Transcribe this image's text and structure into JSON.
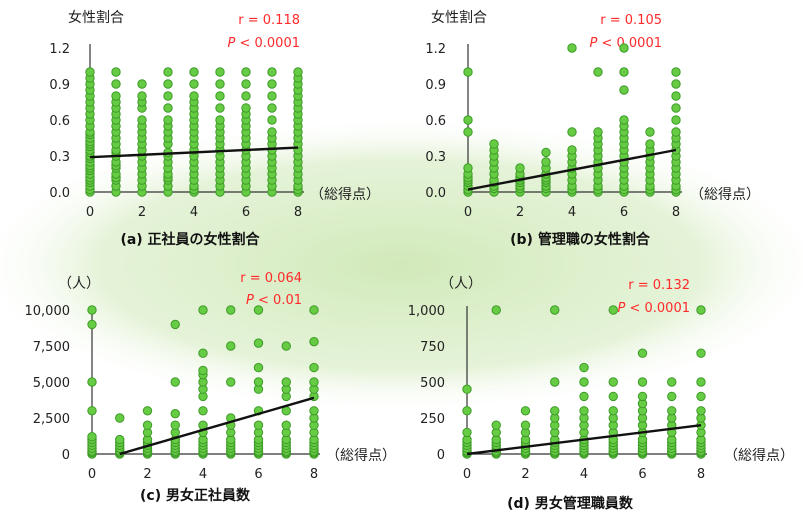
{
  "colors": {
    "point_fill": "#66cc44",
    "point_stroke": "#3e9a28",
    "trend_line": "#111111",
    "stat_text": "#ff2a2a",
    "background_band": "#d9efc6"
  },
  "chart_data": [
    {
      "type": "scatter",
      "title": "(a) 正社員の女性割合",
      "ylabel": "女性割合",
      "xlabel": "（総得点）",
      "r_text": "r = 0.118",
      "p_symbol": "P",
      "p_rest": " < 0.0001",
      "ylim": [
        0,
        1.2
      ],
      "xlim": [
        0,
        8
      ],
      "yticks": [
        "0.0",
        "0.3",
        "0.6",
        "0.9",
        "1.2"
      ],
      "yticks_values": [
        0,
        0.3,
        0.6,
        0.9,
        1.2
      ],
      "xticks": [
        "0",
        "2",
        "4",
        "6",
        "8"
      ],
      "xticks_values": [
        0,
        2,
        4,
        6,
        8
      ],
      "x_values": [
        0,
        1,
        2,
        3,
        4,
        5,
        6,
        7,
        8
      ],
      "y_per_x": [
        [
          0,
          0.02,
          0.05,
          0.08,
          0.1,
          0.12,
          0.15,
          0.18,
          0.2,
          0.22,
          0.25,
          0.28,
          0.3,
          0.33,
          0.35,
          0.38,
          0.4,
          0.42,
          0.45,
          0.48,
          0.5,
          0.55,
          0.6,
          0.65,
          0.7,
          0.75,
          0.8,
          0.85,
          0.9,
          0.95,
          1.0
        ],
        [
          0,
          0.05,
          0.1,
          0.12,
          0.15,
          0.2,
          0.22,
          0.25,
          0.3,
          0.33,
          0.35,
          0.4,
          0.45,
          0.5,
          0.55,
          0.6,
          0.65,
          0.7,
          0.75,
          0.8,
          0.9,
          1.0
        ],
        [
          0,
          0.05,
          0.1,
          0.15,
          0.2,
          0.25,
          0.3,
          0.35,
          0.4,
          0.45,
          0.5,
          0.55,
          0.6,
          0.7,
          0.75,
          0.8,
          0.9
        ],
        [
          0,
          0.05,
          0.1,
          0.12,
          0.15,
          0.2,
          0.25,
          0.3,
          0.33,
          0.4,
          0.45,
          0.5,
          0.55,
          0.6,
          0.7,
          0.8,
          0.9,
          1.0
        ],
        [
          0,
          0.02,
          0.05,
          0.1,
          0.15,
          0.2,
          0.25,
          0.3,
          0.35,
          0.4,
          0.45,
          0.5,
          0.55,
          0.6,
          0.65,
          0.7,
          0.75,
          0.8,
          0.9,
          1.0
        ],
        [
          0,
          0.05,
          0.1,
          0.15,
          0.2,
          0.25,
          0.3,
          0.35,
          0.4,
          0.45,
          0.5,
          0.55,
          0.6,
          0.7,
          0.8,
          0.9,
          1.0
        ],
        [
          0,
          0.05,
          0.1,
          0.15,
          0.2,
          0.25,
          0.3,
          0.35,
          0.4,
          0.45,
          0.5,
          0.55,
          0.6,
          0.65,
          0.7,
          0.8,
          0.9,
          1.0
        ],
        [
          0,
          0.05,
          0.1,
          0.15,
          0.2,
          0.25,
          0.3,
          0.35,
          0.4,
          0.45,
          0.5,
          0.6,
          0.7,
          0.8,
          0.9,
          1.0
        ],
        [
          0,
          0.02,
          0.05,
          0.1,
          0.15,
          0.2,
          0.25,
          0.3,
          0.35,
          0.4,
          0.45,
          0.5,
          0.55,
          0.6,
          0.65,
          0.7,
          0.75,
          0.8,
          0.85,
          0.9,
          0.95,
          1.0
        ]
      ],
      "trend": {
        "x": [
          0,
          8
        ],
        "y": [
          0.29,
          0.37
        ]
      }
    },
    {
      "type": "scatter",
      "title": "(b) 管理職の女性割合",
      "ylabel": "女性割合",
      "xlabel": "（総得点）",
      "r_text": "r = 0.105",
      "p_symbol": "P",
      "p_rest": " < 0.0001",
      "ylim": [
        0,
        1.2
      ],
      "xlim": [
        0,
        8
      ],
      "yticks": [
        "0.0",
        "0.3",
        "0.6",
        "0.9",
        "1.2"
      ],
      "yticks_values": [
        0,
        0.3,
        0.6,
        0.9,
        1.2
      ],
      "xticks": [
        "0",
        "2",
        "4",
        "6",
        "8"
      ],
      "xticks_values": [
        0,
        2,
        4,
        6,
        8
      ],
      "x_values": [
        0,
        1,
        2,
        3,
        4,
        5,
        6,
        7,
        8
      ],
      "y_per_x": [
        [
          0,
          0.02,
          0.05,
          0.08,
          0.1,
          0.12,
          0.15,
          0.2,
          0.5,
          0.6,
          1.0
        ],
        [
          0,
          0.03,
          0.05,
          0.08,
          0.1,
          0.15,
          0.2,
          0.25,
          0.3,
          0.35,
          0.4
        ],
        [
          0,
          0.03,
          0.05,
          0.08,
          0.1,
          0.12,
          0.15,
          0.2
        ],
        [
          0,
          0.03,
          0.05,
          0.08,
          0.1,
          0.12,
          0.15,
          0.2,
          0.25,
          0.33
        ],
        [
          0,
          0.02,
          0.05,
          0.1,
          0.15,
          0.2,
          0.25,
          0.3,
          0.35,
          0.5,
          1.2
        ],
        [
          0,
          0.02,
          0.05,
          0.1,
          0.15,
          0.2,
          0.25,
          0.3,
          0.35,
          0.4,
          0.45,
          0.5,
          1.0
        ],
        [
          0,
          0.02,
          0.05,
          0.1,
          0.15,
          0.2,
          0.25,
          0.3,
          0.35,
          0.4,
          0.45,
          0.5,
          0.55,
          0.6,
          0.85,
          1.0,
          1.2
        ],
        [
          0,
          0.02,
          0.05,
          0.1,
          0.15,
          0.2,
          0.25,
          0.3,
          0.35,
          0.4,
          0.5
        ],
        [
          0,
          0.02,
          0.05,
          0.1,
          0.15,
          0.2,
          0.25,
          0.3,
          0.35,
          0.4,
          0.45,
          0.5,
          0.6,
          0.7,
          0.8,
          0.9,
          1.0
        ]
      ],
      "trend": {
        "x": [
          0,
          8
        ],
        "y": [
          0.02,
          0.35
        ]
      }
    },
    {
      "type": "scatter",
      "title": "(c) 男女正社員数",
      "ylabel": "（人）",
      "xlabel": "（総得点）",
      "r_text": "r = 0.064",
      "p_symbol": "P",
      "p_rest": " < 0.01",
      "ylim": [
        0,
        10000
      ],
      "xlim": [
        0,
        8
      ],
      "yticks": [
        "0",
        "2,500",
        "5,000",
        "7,500",
        "10,000"
      ],
      "yticks_values": [
        0,
        2500,
        5000,
        7500,
        10000
      ],
      "xticks": [
        "0",
        "2",
        "4",
        "6",
        "8"
      ],
      "xticks_values": [
        0,
        2,
        4,
        6,
        8
      ],
      "x_values": [
        0,
        1,
        2,
        3,
        4,
        5,
        6,
        7,
        8
      ],
      "y_per_x": [
        [
          0,
          100,
          200,
          400,
          600,
          800,
          1000,
          1200,
          3000,
          5000,
          9000,
          10000
        ],
        [
          0,
          100,
          200,
          400,
          600,
          800,
          1000,
          2500
        ],
        [
          0,
          100,
          200,
          400,
          600,
          800,
          1000,
          1500,
          2000,
          3000
        ],
        [
          0,
          100,
          200,
          400,
          600,
          800,
          1000,
          1500,
          2000,
          2800,
          5000,
          9000
        ],
        [
          0,
          100,
          200,
          400,
          600,
          800,
          1000,
          1500,
          2000,
          3000,
          4000,
          4500,
          5000,
          5500,
          5800,
          7000,
          10000
        ],
        [
          0,
          100,
          200,
          400,
          600,
          800,
          1000,
          1500,
          2000,
          2500,
          5000,
          7500,
          10000
        ],
        [
          0,
          100,
          200,
          400,
          600,
          800,
          1000,
          1500,
          2000,
          3000,
          4500,
          5000,
          6000,
          7700,
          10000
        ],
        [
          0,
          100,
          200,
          400,
          600,
          800,
          1000,
          1500,
          2000,
          3000,
          4000,
          4500,
          5000,
          7500
        ],
        [
          0,
          100,
          200,
          400,
          600,
          800,
          1000,
          1500,
          2000,
          2500,
          3000,
          4000,
          4500,
          5000,
          6000,
          7800,
          10000
        ]
      ],
      "trend": {
        "x": [
          1,
          8
        ],
        "y": [
          0,
          3900
        ]
      }
    },
    {
      "type": "scatter",
      "title": "(d) 男女管理職員数",
      "ylabel": "（人）",
      "xlabel": "（総得点）",
      "r_text": "r = 0.132",
      "p_symbol": "P",
      "p_rest": " < 0.0001",
      "ylim": [
        0,
        1000
      ],
      "xlim": [
        0,
        8
      ],
      "yticks": [
        "0",
        "250",
        "500",
        "750",
        "1,000"
      ],
      "yticks_values": [
        0,
        250,
        500,
        750,
        1000
      ],
      "xticks": [
        "0",
        "2",
        "4",
        "6",
        "8"
      ],
      "xticks_values": [
        0,
        2,
        4,
        6,
        8
      ],
      "x_values": [
        0,
        1,
        2,
        3,
        4,
        5,
        6,
        7,
        8
      ],
      "y_per_x": [
        [
          0,
          10,
          20,
          40,
          60,
          80,
          100,
          150,
          300,
          450
        ],
        [
          0,
          10,
          20,
          40,
          60,
          80,
          100,
          150,
          200,
          1000
        ],
        [
          0,
          10,
          20,
          40,
          60,
          80,
          100,
          150,
          200,
          300
        ],
        [
          0,
          10,
          20,
          40,
          60,
          80,
          100,
          150,
          200,
          250,
          300,
          500,
          1000
        ],
        [
          0,
          10,
          20,
          40,
          60,
          80,
          100,
          150,
          200,
          250,
          300,
          400,
          500,
          600
        ],
        [
          0,
          10,
          20,
          40,
          60,
          80,
          100,
          150,
          200,
          250,
          300,
          400,
          500,
          1000
        ],
        [
          0,
          10,
          20,
          40,
          60,
          80,
          100,
          150,
          200,
          250,
          300,
          350,
          400,
          500,
          700
        ],
        [
          0,
          10,
          20,
          40,
          60,
          80,
          100,
          150,
          200,
          250,
          300,
          400,
          500
        ],
        [
          0,
          10,
          20,
          40,
          60,
          80,
          100,
          150,
          200,
          250,
          300,
          400,
          500,
          700,
          1000
        ]
      ],
      "trend": {
        "x": [
          0,
          8
        ],
        "y": [
          0,
          200
        ]
      }
    }
  ]
}
